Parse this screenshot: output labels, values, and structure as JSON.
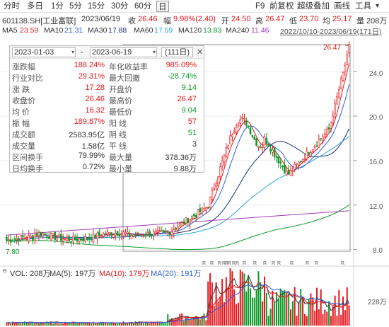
{
  "toolbar": {
    "tabs": [
      {
        "label": "分时",
        "active": false
      },
      {
        "label": "多日",
        "active": false
      },
      {
        "label": "1分",
        "active": false
      },
      {
        "label": "5分",
        "active": false
      },
      {
        "label": "15分",
        "active": false
      },
      {
        "label": "30分",
        "active": false
      },
      {
        "label": "60分",
        "active": false
      },
      {
        "label": "日",
        "active": true
      }
    ],
    "tools": [
      "F9",
      "前复权",
      "超级叠加",
      "画线",
      "工具"
    ],
    "more": "▾"
  },
  "quote": {
    "name": "601138.SH[工业富联]",
    "date": "2023/06/19",
    "close_label": "收",
    "close": "26.46",
    "amp_label": "幅",
    "amp": "9.98%(2.40)",
    "open_label": "开",
    "open": "24.50",
    "high_label": "高",
    "high": "26.47",
    "low_label": "低",
    "low": "23.70",
    "avg_label": "均",
    "avg": "25.17",
    "vol_label": "量",
    "vol": "208万"
  },
  "ma": {
    "items": [
      {
        "label": "MA5",
        "value": "23.59",
        "color": "#e4161b"
      },
      {
        "label": "MA10",
        "value": "21.31",
        "color": "#2e5ed6"
      },
      {
        "label": "MA30",
        "value": "17.88",
        "color": "#1b2f7d"
      },
      {
        "label": "MA60",
        "value": "17.59",
        "color": "#2fa3d8"
      },
      {
        "label": "MA120",
        "value": "13.83",
        "color": "#0e9a2a"
      },
      {
        "label": "MA240",
        "value": "11.46",
        "color": "#a23bb8"
      }
    ],
    "range": "2022/10/10-2023/06/19(171日)"
  },
  "panel": {
    "start_date": "2023-01-03",
    "sep": "-",
    "end_date": "2023-06-19",
    "days": "(111日)",
    "rows": [
      {
        "l1": "涨跌幅",
        "v1": "188.24%",
        "l2": "年化收益率",
        "v2": "985.09%",
        "c1": "#e4161b",
        "c2": "#e4161b"
      },
      {
        "l1": "行业对比",
        "v1": "29.31%",
        "l2": "最大回撤",
        "v2": "-28.74%",
        "c1": "#e4161b",
        "c2": "#0e9a2a"
      },
      {
        "l1": "涨  跌",
        "v1": "17.28",
        "l2": "开盘价",
        "v2": "9.14",
        "c1": "#e4161b",
        "c2": "#0e9a2a"
      },
      {
        "l1": "收盘价",
        "v1": "26.46",
        "l2": "最高价",
        "v2": "26.47",
        "c1": "#e4161b",
        "c2": "#e4161b"
      },
      {
        "l1": "均  价",
        "v1": "16.32",
        "l2": "最低价",
        "v2": "9.04",
        "c1": "#e4161b",
        "c2": "#0e9a2a"
      },
      {
        "l1": "振  幅",
        "v1": "189.87%",
        "l2": "阳  线",
        "v2": "57",
        "c1": "#e4161b",
        "c2": "#e4161b"
      },
      {
        "l1": "成交额",
        "v1": "2583.95亿",
        "l2": "阴  线",
        "v2": "51",
        "c1": "#333333",
        "c2": "#0e9a2a"
      },
      {
        "l1": "成交量",
        "v1": "1.58亿",
        "l2": "平  线",
        "v2": "3",
        "c1": "#333333",
        "c2": "#333333"
      },
      {
        "l1": "区间换手",
        "v1": "79.99%",
        "l2": "最大量",
        "v2": "378.36万",
        "c1": "#333333",
        "c2": "#333333"
      },
      {
        "l1": "日均换手",
        "v1": "0.72%",
        "l2": "最小量",
        "v2": "9.88万",
        "c1": "#333333",
        "c2": "#333333"
      }
    ]
  },
  "chart_labels": {
    "high_mark": "26.47",
    "low_mark": "7.80",
    "y_ticks": [
      "24.0",
      "20.0",
      "16.0",
      "12.0",
      "8.0"
    ],
    "vol_tick": "228万",
    "marker_char": "R"
  },
  "vol_bar": {
    "prefix": "VOL: 208万",
    "ma5": "MA(5): 197万",
    "ma10": "MA(10): 179万",
    "ma20": "MA(20): 191万"
  },
  "colors": {
    "up": "#e4161b",
    "down": "#0e9a2a",
    "ma5": "#e4161b",
    "ma10": "#2e5ed6",
    "ma30": "#1b2f7d",
    "ma60": "#2fa3d8",
    "ma120": "#0e9a2a",
    "ma240": "#a23bb8"
  }
}
